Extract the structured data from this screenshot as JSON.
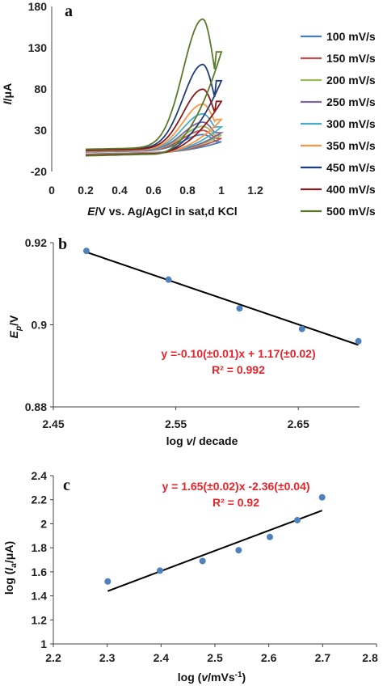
{
  "chart_data": [
    {
      "panel_label": "a",
      "type": "line",
      "ylabel": "I/μA",
      "xlabel": "E/V vs. Ag/AgCl in sat,d KCl",
      "xlim": [
        0,
        1.2
      ],
      "ylim": [
        -20,
        180
      ],
      "xticks": [
        "0",
        "0.2",
        "0.4",
        "0.6",
        "0.8",
        "1",
        "1.2"
      ],
      "yticks": [
        "-20",
        "30",
        "80",
        "130",
        "180"
      ],
      "legend_position": "right",
      "series": [
        {
          "name": "100 mV/s",
          "color": "#4a7ebb",
          "peak": 25,
          "lower_end": 16,
          "start_upper": 3.5,
          "start_lower": 1.0
        },
        {
          "name": "150 mV/s",
          "color": "#c0504d",
          "peak": 30,
          "lower_end": 20,
          "start_upper": 3.8,
          "start_lower": 0.8
        },
        {
          "name": "200 mV/s",
          "color": "#9bbb59",
          "peak": 35,
          "lower_end": 24,
          "start_upper": 4.1,
          "start_lower": 0.6
        },
        {
          "name": "250 mV/s",
          "color": "#8064a2",
          "peak": 40,
          "lower_end": 27,
          "start_upper": 4.4,
          "start_lower": 0.4
        },
        {
          "name": "300 mV/s",
          "color": "#4bacc6",
          "peak": 50,
          "lower_end": 34,
          "start_upper": 4.7,
          "start_lower": 0.2
        },
        {
          "name": "350 mV/s",
          "color": "#f79646",
          "peak": 62,
          "lower_end": 43,
          "start_upper": 5.0,
          "start_lower": 0.0
        },
        {
          "name": "450 mV/s",
          "color": "#1f3d7a",
          "peak": 110,
          "lower_end": 90,
          "start_upper": 6.0,
          "start_lower": -0.6
        },
        {
          "name": "400 mV/s",
          "color": "#8b1a1a",
          "peak": 80,
          "lower_end": 65,
          "start_upper": 5.5,
          "start_lower": -0.3
        },
        {
          "name": "500 mV/s",
          "color": "#5a7a2a",
          "peak": 165,
          "lower_end": 125,
          "start_upper": 7.0,
          "start_lower": -1.0
        }
      ]
    },
    {
      "panel_label": "b",
      "type": "scatter",
      "ylabel": "Ep/V",
      "xlabel": "log v/ decade",
      "xlim": [
        2.45,
        2.7
      ],
      "ylim": [
        0.88,
        0.92
      ],
      "xticks": [
        "2.45",
        "2.55",
        "2.65"
      ],
      "yticks": [
        "0.88",
        "0.9",
        "0.92"
      ],
      "points": [
        {
          "x": 2.477,
          "y": 0.918
        },
        {
          "x": 2.544,
          "y": 0.911
        },
        {
          "x": 2.602,
          "y": 0.904
        },
        {
          "x": 2.653,
          "y": 0.899
        },
        {
          "x": 2.699,
          "y": 0.896
        }
      ],
      "trendline": {
        "x": [
          2.477,
          2.699
        ],
        "y": [
          0.9177,
          0.8951
        ]
      },
      "equation": "y =-0.10(±0.01)x + 1.17(±0.02)",
      "r2": "R² = 0.992",
      "marker_color": "#4f81bd"
    },
    {
      "panel_label": "c",
      "type": "scatter",
      "ylabel": "log (Ia/μA)",
      "xlabel": "log (v/mVs-1)",
      "xlim": [
        2.2,
        2.8
      ],
      "ylim": [
        1,
        2.4
      ],
      "xticks": [
        "2.2",
        "2.3",
        "2.4",
        "2.5",
        "2.6",
        "2.7",
        "2.8"
      ],
      "yticks": [
        "1",
        "1.2",
        "1.4",
        "1.6",
        "1.8",
        "2",
        "2.2",
        "2.4"
      ],
      "points": [
        {
          "x": 2.301,
          "y": 1.52
        },
        {
          "x": 2.398,
          "y": 1.61
        },
        {
          "x": 2.477,
          "y": 1.69
        },
        {
          "x": 2.544,
          "y": 1.78
        },
        {
          "x": 2.602,
          "y": 1.89
        },
        {
          "x": 2.653,
          "y": 2.03
        },
        {
          "x": 2.699,
          "y": 2.22
        }
      ],
      "trendline": {
        "x": [
          2.301,
          2.699
        ],
        "y": [
          1.44,
          2.11
        ]
      },
      "equation": "y = 1.65(±0.02)x -2.36(±0.04)",
      "r2": "R² = 0.92",
      "marker_color": "#4f81bd"
    }
  ]
}
